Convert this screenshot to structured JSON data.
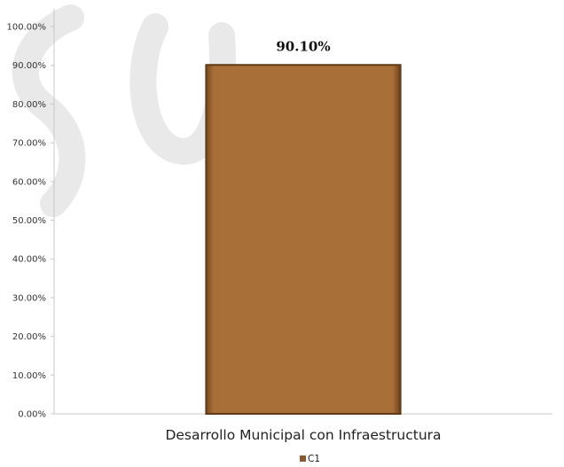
{
  "chart_data": {
    "type": "bar",
    "categories": [
      "Desarrollo Municipal con Infraestructura"
    ],
    "series": [
      {
        "name": "C1",
        "values": [
          90.1
        ]
      }
    ],
    "data_labels": [
      "90.10%"
    ],
    "y_ticks": [
      0,
      10,
      20,
      30,
      40,
      50,
      60,
      70,
      80,
      90,
      100
    ],
    "y_tick_labels": [
      "0.00%",
      "10.00%",
      "20.00%",
      "30.00%",
      "40.00%",
      "50.00%",
      "60.00%",
      "70.00%",
      "80.00%",
      "90.00%",
      "100.00%"
    ],
    "ylim": [
      0,
      100
    ],
    "grid": false,
    "legend_position": "bottom-center",
    "colors": {
      "bar": "#a96f38",
      "bar_edge": "#5e3a16",
      "legend_swatch": "#8a5a32"
    }
  }
}
